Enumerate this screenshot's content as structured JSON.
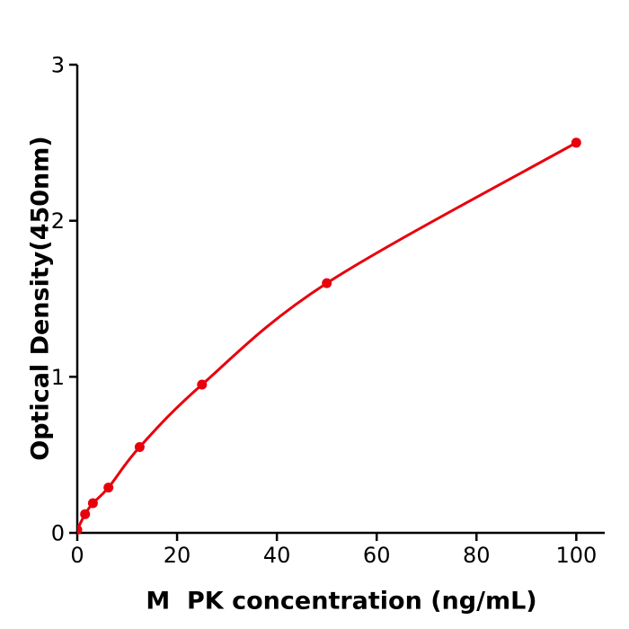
{
  "figure": {
    "background": "#ffffff"
  },
  "chart_data": {
    "type": "line",
    "title": "",
    "xlabel": "M  PK concentration (ng/mL)",
    "ylabel": "Optical Density(450nm)",
    "x": [
      0,
      1.56,
      3.125,
      6.25,
      12.5,
      25,
      50,
      100
    ],
    "series": [
      {
        "name": "Optical Density",
        "values": [
          0.02,
          0.12,
          0.19,
          0.29,
          0.55,
          0.95,
          1.6,
          2.5
        ]
      }
    ],
    "xticks": [
      0,
      20,
      40,
      60,
      80,
      100
    ],
    "yticks": [
      0,
      1,
      2,
      3
    ],
    "xlim": [
      0,
      105.7
    ],
    "ylim": [
      0,
      3
    ],
    "grid": false,
    "legend": null,
    "marker": "circle",
    "line_color": "#e8000d",
    "marker_color": "#e8000d",
    "axis_color": "#000000"
  }
}
